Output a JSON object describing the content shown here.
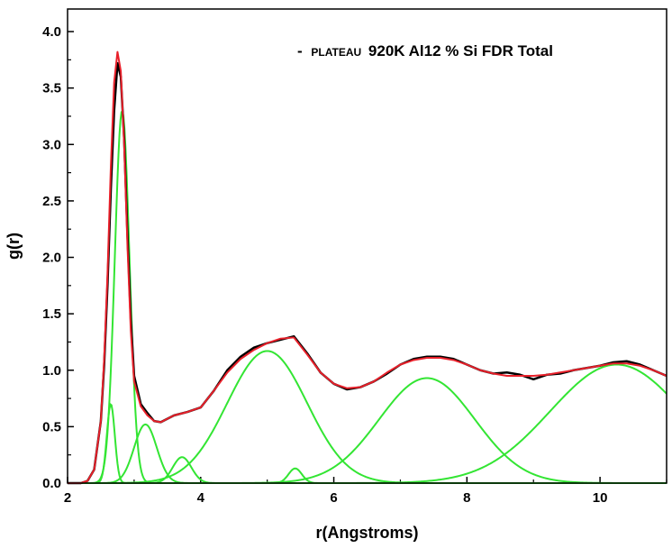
{
  "chart_data": {
    "type": "line",
    "xlabel": "r(Angstroms)",
    "ylabel": "g(r)",
    "xlim": [
      2,
      11
    ],
    "ylim": [
      0,
      4.2
    ],
    "x_ticks": [
      2,
      4,
      6,
      8,
      10
    ],
    "x_tick_labels": [
      "2",
      "4",
      "6",
      "8",
      "10"
    ],
    "y_ticks": [
      0,
      0.5,
      1.0,
      1.5,
      2.0,
      2.5,
      3.0,
      3.5,
      4.0
    ],
    "y_tick_labels": [
      "0.0",
      "0.5",
      "1.0",
      "1.5",
      "2.0",
      "2.5",
      "3.0",
      "3.5",
      "4.0"
    ],
    "legend": {
      "placement": "top-right",
      "prefix": "-",
      "small_word": "PLATEAU",
      "text": "920K Al12 % Si FDR Total"
    },
    "colors": {
      "experimental": "#000000",
      "fit": "#e8202a",
      "components": "#33e533"
    },
    "experimental": {
      "x": [
        2.0,
        2.2,
        2.3,
        2.4,
        2.5,
        2.55,
        2.6,
        2.65,
        2.7,
        2.75,
        2.8,
        2.85,
        2.9,
        2.95,
        3.0,
        3.1,
        3.2,
        3.3,
        3.4,
        3.5,
        3.6,
        3.8,
        4.0,
        4.2,
        4.4,
        4.6,
        4.8,
        5.0,
        5.2,
        5.4,
        5.6,
        5.8,
        6.0,
        6.2,
        6.4,
        6.6,
        6.8,
        7.0,
        7.2,
        7.4,
        7.6,
        7.8,
        8.0,
        8.2,
        8.4,
        8.6,
        8.8,
        9.0,
        9.2,
        9.4,
        9.6,
        9.8,
        10.0,
        10.2,
        10.4,
        10.6,
        10.8,
        11.0
      ],
      "y": [
        0,
        0,
        0.02,
        0.12,
        0.55,
        1.05,
        1.75,
        2.6,
        3.3,
        3.72,
        3.6,
        3.05,
        2.2,
        1.45,
        0.95,
        0.7,
        0.62,
        0.55,
        0.54,
        0.57,
        0.6,
        0.63,
        0.67,
        0.82,
        1.0,
        1.12,
        1.2,
        1.24,
        1.27,
        1.3,
        1.15,
        0.98,
        0.88,
        0.83,
        0.85,
        0.9,
        0.97,
        1.05,
        1.1,
        1.12,
        1.12,
        1.1,
        1.05,
        1.0,
        0.97,
        0.98,
        0.96,
        0.92,
        0.96,
        0.97,
        1.0,
        1.02,
        1.04,
        1.07,
        1.08,
        1.05,
        1.0,
        0.95
      ]
    },
    "fit": {
      "x": [
        2.0,
        2.2,
        2.3,
        2.4,
        2.5,
        2.55,
        2.6,
        2.65,
        2.7,
        2.75,
        2.8,
        2.85,
        2.9,
        2.95,
        3.0,
        3.1,
        3.2,
        3.3,
        3.4,
        3.5,
        3.6,
        3.8,
        4.0,
        4.2,
        4.4,
        4.6,
        4.8,
        5.0,
        5.2,
        5.4,
        5.6,
        5.8,
        6.0,
        6.2,
        6.4,
        6.6,
        6.8,
        7.0,
        7.2,
        7.4,
        7.6,
        7.8,
        8.0,
        8.2,
        8.4,
        8.6,
        8.8,
        9.0,
        9.2,
        9.4,
        9.6,
        9.8,
        10.0,
        10.2,
        10.4,
        10.6,
        10.8,
        11.0
      ],
      "y": [
        0,
        0,
        0.02,
        0.12,
        0.55,
        1.1,
        1.85,
        2.8,
        3.55,
        3.82,
        3.65,
        3.0,
        2.1,
        1.35,
        0.9,
        0.68,
        0.6,
        0.55,
        0.54,
        0.57,
        0.6,
        0.63,
        0.67,
        0.82,
        0.98,
        1.1,
        1.18,
        1.24,
        1.28,
        1.29,
        1.14,
        0.98,
        0.88,
        0.84,
        0.85,
        0.9,
        0.98,
        1.05,
        1.09,
        1.11,
        1.11,
        1.09,
        1.05,
        1.0,
        0.97,
        0.95,
        0.95,
        0.95,
        0.96,
        0.98,
        1.0,
        1.02,
        1.04,
        1.06,
        1.06,
        1.04,
        1.0,
        0.95
      ]
    },
    "components": [
      {
        "center": 2.65,
        "height": 0.7,
        "width": 0.06
      },
      {
        "center": 2.82,
        "height": 3.3,
        "width": 0.11
      },
      {
        "center": 3.17,
        "height": 0.52,
        "width": 0.17
      },
      {
        "center": 3.72,
        "height": 0.23,
        "width": 0.14
      },
      {
        "center": 5.0,
        "height": 1.17,
        "width": 0.6
      },
      {
        "center": 5.42,
        "height": 0.13,
        "width": 0.1
      },
      {
        "center": 7.4,
        "height": 0.93,
        "width": 0.72
      },
      {
        "center": 10.25,
        "height": 1.05,
        "width": 1.0
      }
    ]
  }
}
